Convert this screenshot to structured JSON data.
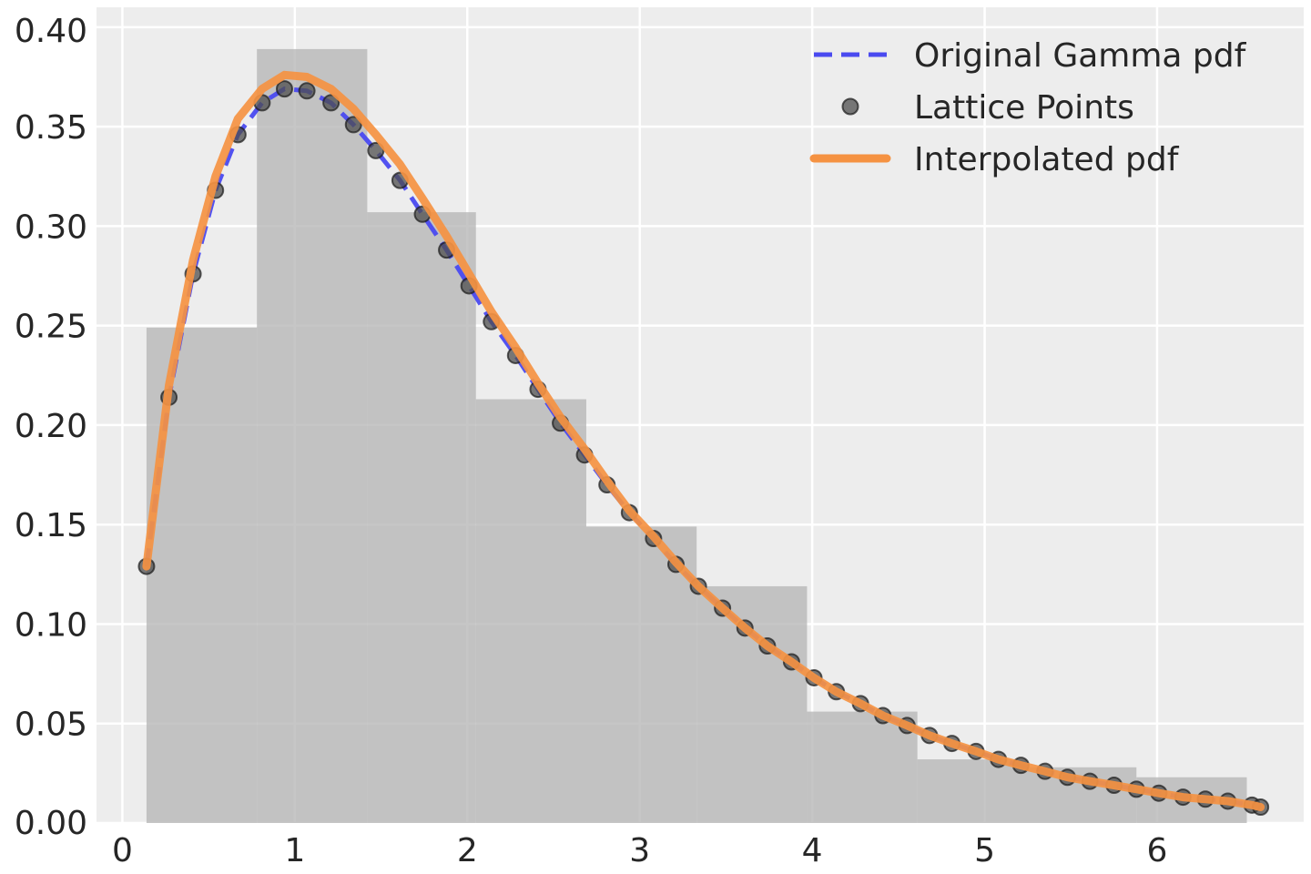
{
  "chart_data": {
    "type": "line",
    "title": "",
    "xlabel": "",
    "ylabel": "",
    "xlim": [
      -0.15,
      6.85
    ],
    "ylim": [
      0.0,
      0.41
    ],
    "x_ticks": [
      0,
      1,
      2,
      3,
      4,
      5,
      6
    ],
    "x_tick_labels": [
      "0",
      "1",
      "2",
      "3",
      "4",
      "5",
      "6"
    ],
    "y_ticks": [
      0.0,
      0.05,
      0.1,
      0.15,
      0.2,
      0.25,
      0.3,
      0.35,
      0.4
    ],
    "y_tick_labels": [
      "0.00",
      "0.05",
      "0.10",
      "0.15",
      "0.20",
      "0.25",
      "0.30",
      "0.35",
      "0.40"
    ],
    "grid": true,
    "background": "#ededed",
    "legend_position": "top-right",
    "histogram": {
      "color": "#b3b3b3",
      "bin_edges": [
        0.14,
        0.78,
        1.42,
        2.05,
        2.69,
        3.33,
        3.97,
        4.61,
        5.24,
        5.88,
        6.52
      ],
      "heights": [
        0.249,
        0.389,
        0.307,
        0.213,
        0.149,
        0.119,
        0.056,
        0.032,
        0.028,
        0.023
      ]
    },
    "series": [
      {
        "name": "Original Gamma pdf",
        "kind": "dashed-line",
        "color": "#4a4af0",
        "x": [
          0.14,
          0.27,
          0.41,
          0.54,
          0.67,
          0.81,
          0.94,
          1.07,
          1.21,
          1.34,
          1.47,
          1.61,
          1.74,
          1.88,
          2.01,
          2.14,
          2.28,
          2.41,
          2.54,
          2.68,
          2.81,
          2.94,
          3.08,
          3.21,
          3.34,
          3.48,
          3.61,
          3.74,
          3.88,
          4.01,
          4.14,
          4.28,
          4.41,
          4.55,
          4.68,
          4.81,
          4.95,
          5.08,
          5.21,
          5.35,
          5.48,
          5.61,
          5.75,
          5.88,
          6.01,
          6.15,
          6.28,
          6.41,
          6.55,
          6.6
        ],
        "values": [
          0.129,
          0.214,
          0.276,
          0.318,
          0.346,
          0.362,
          0.369,
          0.368,
          0.362,
          0.351,
          0.338,
          0.323,
          0.306,
          0.288,
          0.27,
          0.252,
          0.235,
          0.218,
          0.201,
          0.185,
          0.17,
          0.156,
          0.143,
          0.13,
          0.119,
          0.108,
          0.098,
          0.089,
          0.081,
          0.073,
          0.066,
          0.06,
          0.054,
          0.049,
          0.044,
          0.04,
          0.036,
          0.032,
          0.029,
          0.026,
          0.023,
          0.021,
          0.019,
          0.017,
          0.015,
          0.013,
          0.012,
          0.011,
          0.009,
          0.008
        ]
      },
      {
        "name": "Lattice Points",
        "kind": "markers",
        "color": "#4d4d4d",
        "x": [
          0.14,
          0.27,
          0.41,
          0.54,
          0.67,
          0.81,
          0.94,
          1.07,
          1.21,
          1.34,
          1.47,
          1.61,
          1.74,
          1.88,
          2.01,
          2.14,
          2.28,
          2.41,
          2.54,
          2.68,
          2.81,
          2.94,
          3.08,
          3.21,
          3.34,
          3.48,
          3.61,
          3.74,
          3.88,
          4.01,
          4.14,
          4.28,
          4.41,
          4.55,
          4.68,
          4.81,
          4.95,
          5.08,
          5.21,
          5.35,
          5.48,
          5.61,
          5.75,
          5.88,
          6.01,
          6.15,
          6.28,
          6.41,
          6.55,
          6.6
        ],
        "values": [
          0.129,
          0.214,
          0.276,
          0.318,
          0.346,
          0.362,
          0.369,
          0.368,
          0.362,
          0.351,
          0.338,
          0.323,
          0.306,
          0.288,
          0.27,
          0.252,
          0.235,
          0.218,
          0.201,
          0.185,
          0.17,
          0.156,
          0.143,
          0.13,
          0.119,
          0.108,
          0.098,
          0.089,
          0.081,
          0.073,
          0.066,
          0.06,
          0.054,
          0.049,
          0.044,
          0.04,
          0.036,
          0.032,
          0.029,
          0.026,
          0.023,
          0.021,
          0.019,
          0.017,
          0.015,
          0.013,
          0.012,
          0.011,
          0.009,
          0.008
        ]
      },
      {
        "name": "Interpolated pdf",
        "kind": "line",
        "color": "#f59242",
        "x": [
          0.14,
          0.27,
          0.41,
          0.54,
          0.67,
          0.81,
          0.94,
          1.07,
          1.21,
          1.34,
          1.47,
          1.61,
          1.74,
          1.88,
          2.01,
          2.14,
          2.28,
          2.41,
          2.54,
          2.68,
          2.81,
          2.94,
          3.08,
          3.21,
          3.34,
          3.48,
          3.61,
          3.74,
          3.88,
          4.01,
          4.14,
          4.28,
          4.41,
          4.55,
          4.68,
          4.81,
          4.95,
          5.08,
          5.21,
          5.35,
          5.48,
          5.61,
          5.75,
          5.88,
          6.01,
          6.15,
          6.28,
          6.41,
          6.55,
          6.6
        ],
        "values": [
          0.129,
          0.22,
          0.283,
          0.325,
          0.354,
          0.369,
          0.376,
          0.375,
          0.369,
          0.359,
          0.346,
          0.331,
          0.314,
          0.295,
          0.276,
          0.257,
          0.239,
          0.221,
          0.204,
          0.188,
          0.172,
          0.157,
          0.144,
          0.131,
          0.119,
          0.108,
          0.098,
          0.089,
          0.081,
          0.073,
          0.066,
          0.06,
          0.054,
          0.049,
          0.044,
          0.04,
          0.036,
          0.032,
          0.029,
          0.026,
          0.023,
          0.021,
          0.019,
          0.017,
          0.015,
          0.013,
          0.012,
          0.011,
          0.009,
          0.008
        ]
      }
    ]
  }
}
